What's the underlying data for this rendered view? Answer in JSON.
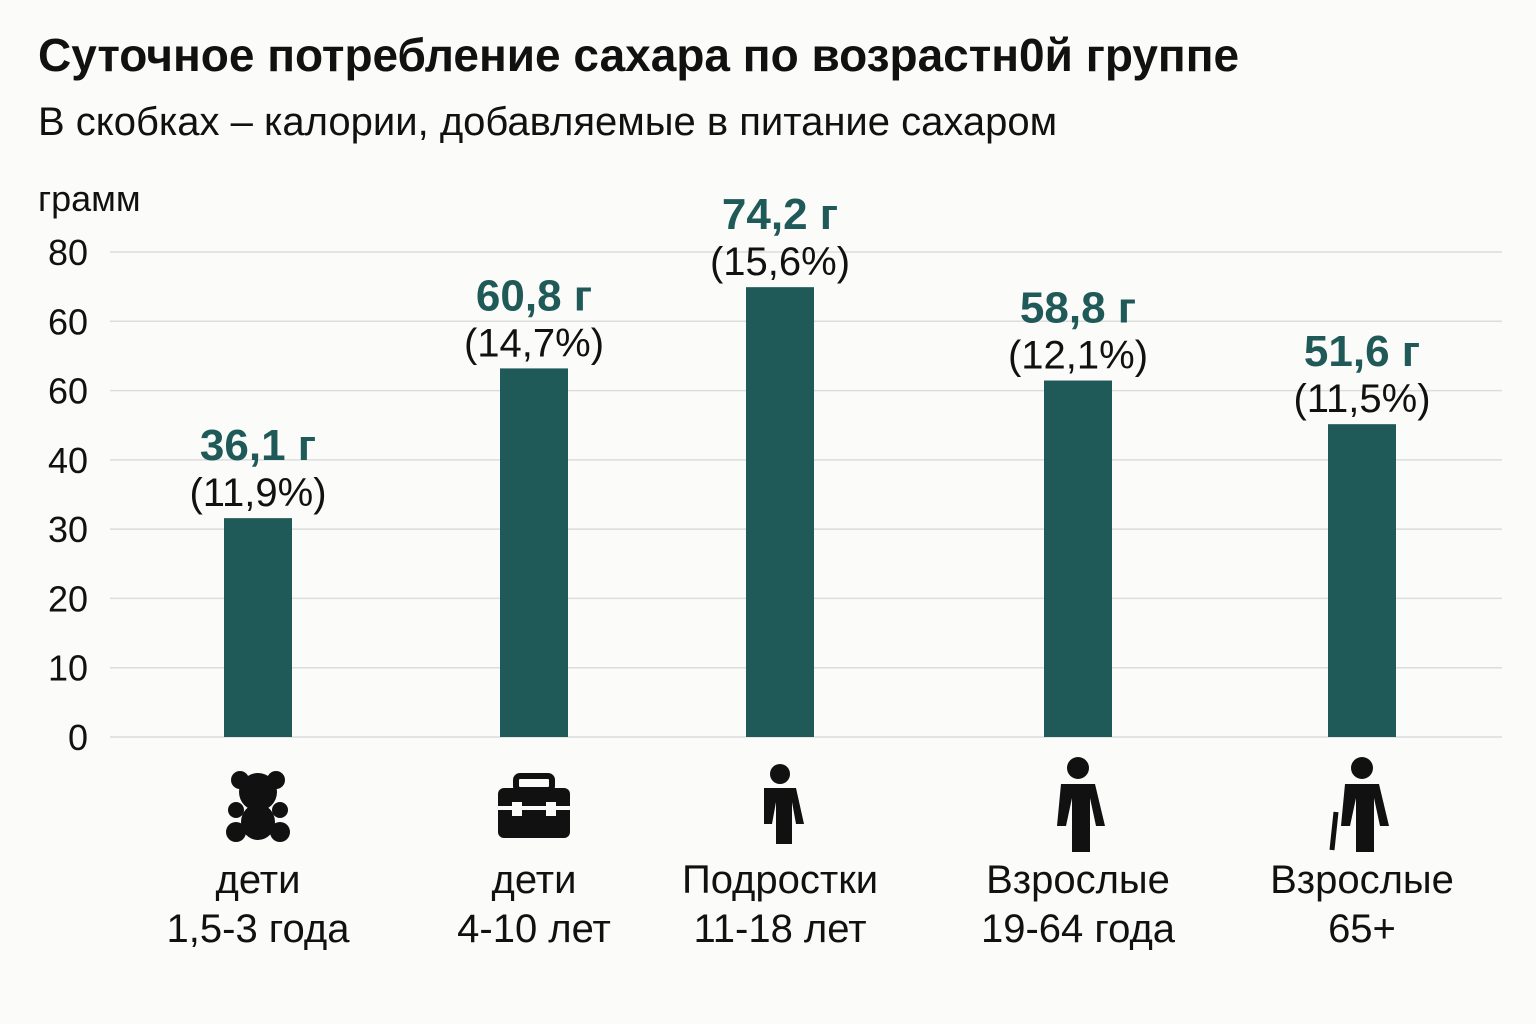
{
  "chart_data": {
    "type": "bar",
    "title": "Суточное потребление сахара по возрастн0й группе",
    "subtitle": "В скобках – калории, добавляемые в питание сахаром",
    "ylabel": "грамм",
    "ylim": [
      0,
      80
    ],
    "y_tick_labels": [
      "80",
      "60",
      "60",
      "40",
      "30",
      "20",
      "10",
      "0"
    ],
    "grid": true,
    "categories": [
      {
        "line1": "дети",
        "line2": "1,5-3 года",
        "icon": "teddy-bear-icon"
      },
      {
        "line1": "дети",
        "line2": "4-10 лет",
        "icon": "school-bag-icon"
      },
      {
        "line1": "Подростки",
        "line2": "11-18 лет",
        "icon": "teen-person-icon"
      },
      {
        "line1": "Взрослые",
        "line2": "19-64 года",
        "icon": "adult-person-icon"
      },
      {
        "line1": "Взрослые",
        "line2": "65+",
        "icon": "elderly-person-cane-icon"
      }
    ],
    "values": [
      36.1,
      60.8,
      74.2,
      58.8,
      51.6
    ],
    "value_labels": [
      "36,1 г",
      "60,8 г",
      "74,2 г",
      "58,8 г",
      "51,6 г"
    ],
    "percent_labels": [
      "(11,9%)",
      "(14,7%)",
      "(15,6%)",
      "(12,1%)",
      "(11,5%)"
    ],
    "colors": {
      "bar": "#1f5a58",
      "value_label": "#1f5a58",
      "grid": "#dddddd"
    }
  }
}
